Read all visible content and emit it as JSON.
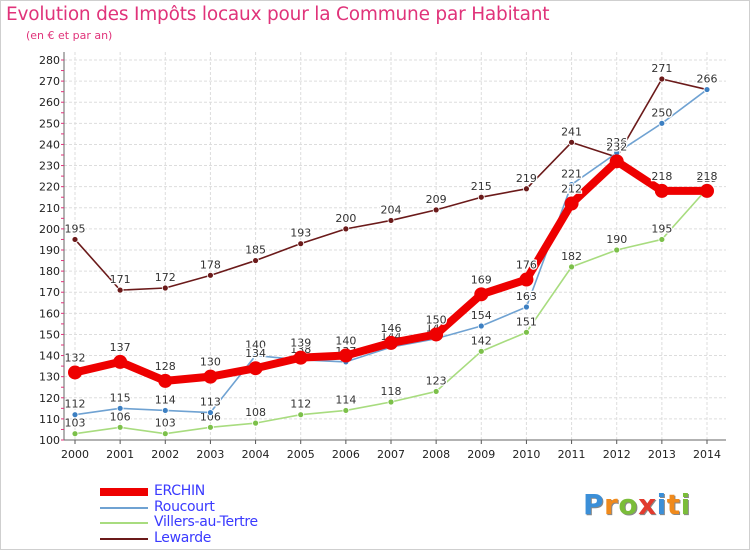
{
  "title": "Evolution des Impôts locaux pour la Commune par Habitant",
  "subtitle": "(en € et par an)",
  "logo": {
    "text": "Proxiti",
    "colors": [
      "#3b8fd8",
      "#f08a1c",
      "#7bbd3a",
      "#e23b2e",
      "#3b8fd8",
      "#f08a1c",
      "#7bbd3a"
    ]
  },
  "chart_data": {
    "type": "line",
    "x": [
      "2000",
      "2001",
      "2002",
      "2003",
      "2004",
      "2005",
      "2006",
      "2007",
      "2008",
      "2009",
      "2010",
      "2011",
      "2012",
      "2013",
      "2014"
    ],
    "ylim": [
      100,
      280
    ],
    "yticks": [
      100,
      110,
      120,
      130,
      140,
      150,
      160,
      170,
      180,
      190,
      200,
      210,
      220,
      230,
      240,
      250,
      260,
      270,
      280
    ],
    "grid": true,
    "series": [
      {
        "name": "Lewarde",
        "color": "#6b1a1a",
        "marker": "#6b1a1a",
        "values": [
          195,
          171,
          172,
          178,
          185,
          193,
          200,
          204,
          209,
          215,
          219,
          241,
          234,
          271,
          266
        ],
        "labels": [
          "195",
          "171",
          "172",
          "178",
          "185",
          "193",
          "200",
          "204",
          "209",
          "215",
          "219",
          "241",
          "234",
          "271",
          "266"
        ]
      },
      {
        "name": "Villers-au-Tertre",
        "color": "#a8dc7f",
        "marker": "#7cc04a",
        "values": [
          103,
          106,
          103,
          106,
          108,
          112,
          114,
          118,
          123,
          142,
          151,
          182,
          190,
          195,
          219
        ],
        "labels": [
          "103",
          "106",
          "103",
          "106",
          "108",
          "112",
          "114",
          "118",
          "123",
          "142",
          "151",
          "182",
          "190",
          "195",
          "219"
        ]
      },
      {
        "name": "Roucourt",
        "color": "#6fa2d2",
        "marker": "#3c7fc2",
        "values": [
          112,
          115,
          114,
          113,
          140,
          138,
          137,
          144,
          148,
          154,
          163,
          221,
          236,
          250,
          266
        ],
        "labels": [
          "112",
          "115",
          "114",
          "113",
          "140",
          "138",
          "137",
          "144",
          "148",
          "154",
          "163",
          "221",
          "236",
          "250",
          "266"
        ]
      },
      {
        "name": "ERCHIN",
        "color": "#ee0000",
        "marker": "#ee0000",
        "values": [
          132,
          137,
          128,
          130,
          134,
          139,
          140,
          146,
          150,
          169,
          176,
          212,
          232,
          218,
          218
        ],
        "labels": [
          "132",
          "137",
          "128",
          "130",
          "134",
          "139",
          "140",
          "146",
          "150",
          "169",
          "176",
          "212",
          "232",
          "218",
          "218"
        ]
      }
    ],
    "legend": [
      "ERCHIN",
      "Roucourt",
      "Villers-au-Tertre",
      "Lewarde"
    ],
    "legend_position": "bottom-left"
  }
}
